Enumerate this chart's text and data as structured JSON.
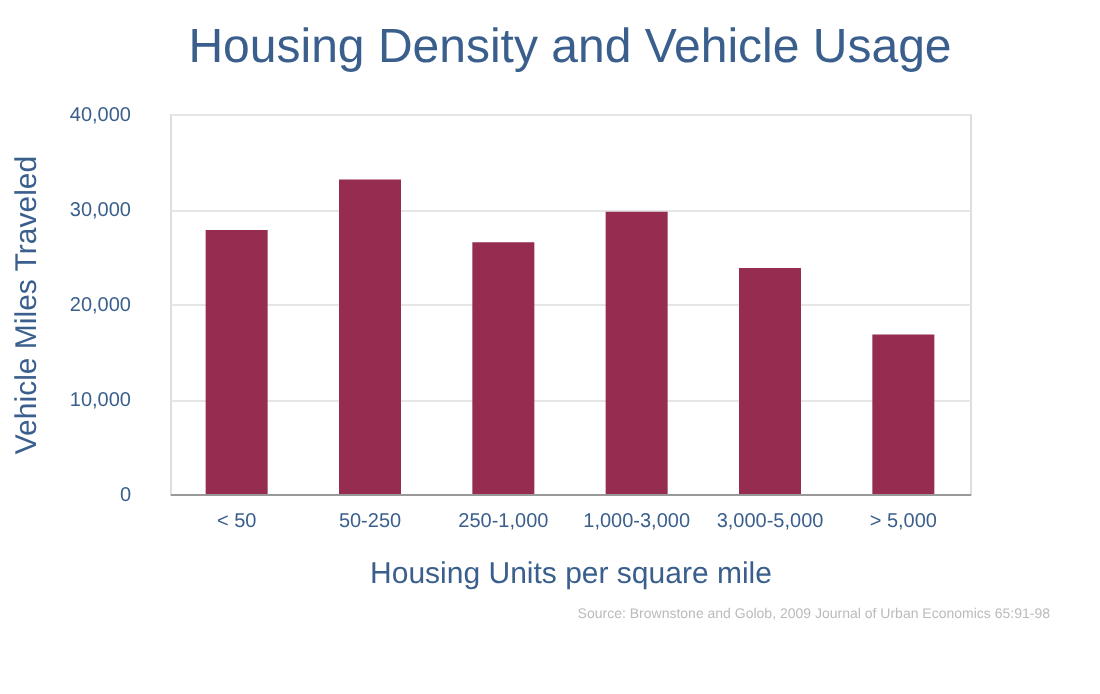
{
  "chart_data": {
    "type": "bar",
    "title": "Housing Density and Vehicle Usage",
    "xlabel": "Housing Units per square mile",
    "ylabel": "Vehicle Miles Traveled",
    "categories": [
      "< 50",
      "50-250",
      "250-1,000",
      "1,000-3,000",
      "3,000-5,000",
      "> 5,000"
    ],
    "values": [
      27800,
      33100,
      26500,
      29700,
      23800,
      16800
    ],
    "color": "#962d50",
    "ylim": [
      0,
      40000
    ],
    "yticks": [
      {
        "value": 0,
        "label": "0"
      },
      {
        "value": 10000,
        "label": "10,000"
      },
      {
        "value": 20000,
        "label": "20,000"
      },
      {
        "value": 30000,
        "label": "30,000"
      },
      {
        "value": 40000,
        "label": "40,000"
      }
    ],
    "grid": "y",
    "annotations": [
      "Source: Brownstone and Golob, 2009 Journal of Urban Economics 65:91-98"
    ]
  }
}
